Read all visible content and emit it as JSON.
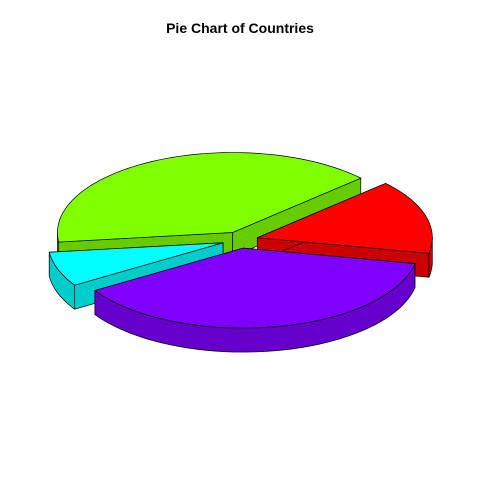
{
  "chart_data": {
    "type": "pie",
    "style": "3d-exploded",
    "title": "Pie Chart of Countries",
    "labels": [
      "",
      "",
      "",
      ""
    ],
    "values": [
      15,
      40,
      7,
      38
    ],
    "colors": [
      "#ff0000",
      "#80ff00",
      "#00ffff",
      "#8000ff"
    ],
    "side_colors": [
      "#cc0000",
      "#66cc00",
      "#00cccc",
      "#6600cc"
    ],
    "legend": "none"
  }
}
